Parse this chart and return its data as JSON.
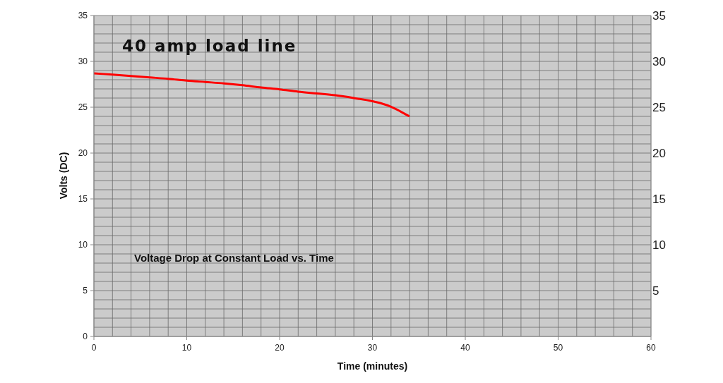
{
  "chart_data": {
    "type": "line",
    "title": "Voltage Drop at Constant Load vs. Time",
    "xlabel": "Time (minutes)",
    "ylabel": "Volts (DC)",
    "annotations": [
      "40 amp load line"
    ],
    "x": [
      0,
      2,
      4,
      6,
      8,
      10,
      12,
      14,
      16,
      18,
      20,
      22,
      24,
      26,
      28,
      30,
      31,
      32,
      33,
      33.9
    ],
    "series": [
      {
        "color": "#ff0000",
        "values": [
          28.7,
          28.55,
          28.4,
          28.25,
          28.1,
          27.9,
          27.75,
          27.6,
          27.4,
          27.15,
          26.95,
          26.7,
          26.5,
          26.3,
          26.0,
          25.65,
          25.4,
          25.05,
          24.55,
          24.05
        ]
      }
    ],
    "xlim": [
      0,
      60
    ],
    "xticks": [
      0,
      {
        "value": 2,
        "label": null
      },
      {
        "value": 4,
        "label": null
      },
      {
        "value": 6,
        "label": null
      },
      {
        "value": 8,
        "label": null
      },
      10,
      {
        "value": 12,
        "label": null
      },
      {
        "value": 14,
        "label": null
      },
      {
        "value": 16,
        "label": null
      },
      {
        "value": 18,
        "label": null
      },
      20,
      {
        "value": 22,
        "label": null
      },
      {
        "value": 24,
        "label": null
      },
      {
        "value": 26,
        "label": null
      },
      {
        "value": 28,
        "label": null
      },
      30,
      {
        "value": 32,
        "label": null
      },
      {
        "value": 34,
        "label": null
      },
      {
        "value": 36,
        "label": null
      },
      {
        "value": 38,
        "label": null
      },
      40,
      {
        "value": 42,
        "label": null
      },
      {
        "value": 44,
        "label": null
      },
      {
        "value": 46,
        "label": null
      },
      {
        "value": 48,
        "label": null
      },
      50,
      {
        "value": 52,
        "label": null
      },
      {
        "value": 54,
        "label": null
      },
      {
        "value": 56,
        "label": null
      },
      {
        "value": 58,
        "label": null
      },
      60
    ],
    "ylim": [
      0,
      35
    ],
    "yticks": [
      0,
      {
        "value": 1,
        "label": null
      },
      {
        "value": 2,
        "label": null
      },
      {
        "value": 3,
        "label": null
      },
      {
        "value": 4,
        "label": null
      },
      5,
      {
        "value": 6,
        "label": null
      },
      {
        "value": 7,
        "label": null
      },
      {
        "value": 8,
        "label": null
      },
      {
        "value": 9,
        "label": null
      },
      10,
      {
        "value": 11,
        "label": null
      },
      {
        "value": 12,
        "label": null
      },
      {
        "value": 13,
        "label": null
      },
      {
        "value": 14,
        "label": null
      },
      15,
      {
        "value": 16,
        "label": null
      },
      {
        "value": 17,
        "label": null
      },
      {
        "value": 18,
        "label": null
      },
      {
        "value": 19,
        "label": null
      },
      20,
      {
        "value": 21,
        "label": null
      },
      {
        "value": 22,
        "label": null
      },
      {
        "value": 23,
        "label": null
      },
      {
        "value": 24,
        "label": null
      },
      25,
      {
        "value": 26,
        "label": null
      },
      {
        "value": 27,
        "label": null
      },
      {
        "value": 28,
        "label": null
      },
      {
        "value": 29,
        "label": null
      },
      30,
      {
        "value": 31,
        "label": null
      },
      {
        "value": 32,
        "label": null
      },
      {
        "value": 33,
        "label": null
      },
      {
        "value": 34,
        "label": null
      },
      35
    ],
    "y2lim": [
      0,
      35
    ],
    "y2ticks": [
      5,
      10,
      15,
      20,
      25,
      30,
      35
    ],
    "grid": true
  }
}
